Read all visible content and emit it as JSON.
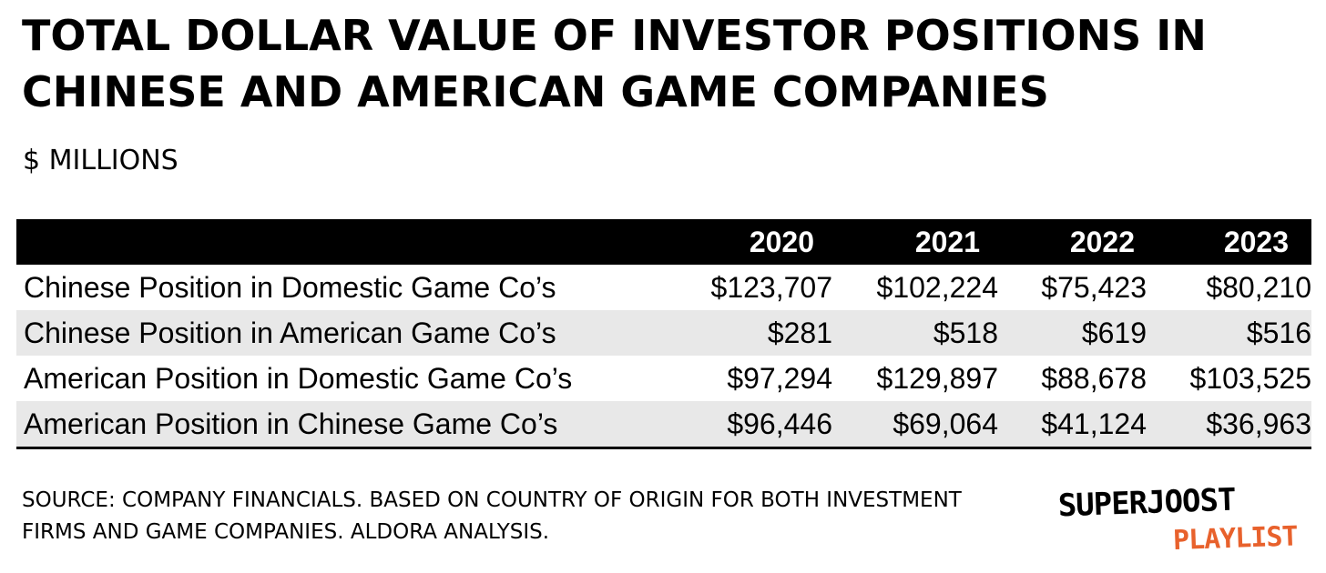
{
  "title": "TOTAL DOLLAR VALUE OF INVESTOR POSITIONS IN CHINESE AND AMERICAN GAME COMPANIES",
  "subtitle": "$ MILLIONS",
  "chart_data": {
    "type": "table",
    "title": "TOTAL DOLLAR VALUE OF INVESTOR POSITIONS IN CHINESE AND AMERICAN GAME COMPANIES",
    "subtitle": "$ MILLIONS",
    "columns": [
      "2020",
      "2021",
      "2022",
      "2023"
    ],
    "rows": [
      {
        "label": "Chinese Position in Domestic Game Co’s",
        "values": [
          "$123,707",
          "$102,224",
          "$75,423",
          "$80,210"
        ]
      },
      {
        "label": "Chinese Position in American Game Co’s",
        "values": [
          "$281",
          "$518",
          "$619",
          "$516"
        ]
      },
      {
        "label": "American Position in Domestic Game Co’s",
        "values": [
          "$97,294",
          "$129,897",
          "$88,678",
          "$103,525"
        ]
      },
      {
        "label": "American Position in Chinese Game Co’s",
        "values": [
          "$96,446",
          "$69,064",
          "$41,124",
          "$36,963"
        ]
      }
    ]
  },
  "source": "SOURCE: COMPANY FINANCIALS. BASED ON COUNTRY OF ORIGIN FOR BOTH INVESTMENT FIRMS AND GAME COMPANIES. ALDORA ANALYSIS.",
  "logo": {
    "line1": "SUPERJOOST",
    "line2": "PLAYLIST",
    "color1": "#000000",
    "color2": "#e8612c"
  },
  "colors": {
    "header_bg": "#000000",
    "header_text": "#ffffff",
    "alt_row": "#e8e8e8"
  }
}
